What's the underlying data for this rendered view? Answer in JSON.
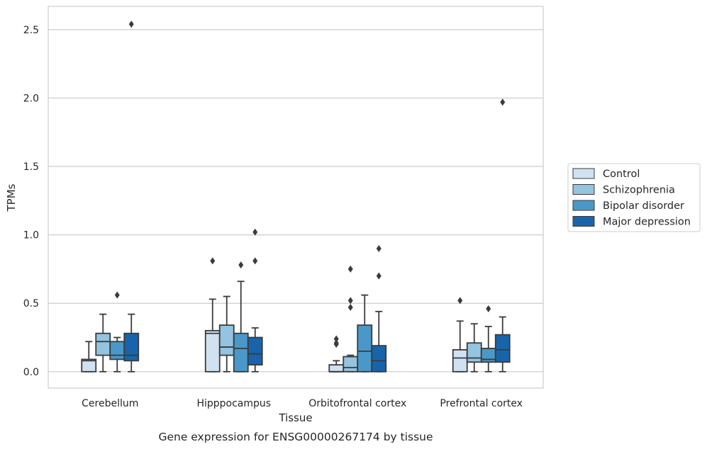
{
  "chart_data": {
    "type": "box",
    "xlabel": "Tissue",
    "ylabel": "TPMs",
    "caption": "Gene expression for ENSG00000267174 by tissue",
    "ylim": [
      -0.12,
      2.67
    ],
    "yticks": [
      "0.0",
      "0.5",
      "1.0",
      "1.5",
      "2.0",
      "2.5"
    ],
    "grid": "horizontal",
    "legend_position": "right",
    "categories": [
      "Cerebellum",
      "Hipppocampus",
      "Orbitofrontal cortex",
      "Prefrontal cortex"
    ],
    "series": [
      {
        "name": "Control",
        "color": "#d0e1f2",
        "boxes": [
          {
            "whisker_low": 0.0,
            "q1": 0.0,
            "median": 0.08,
            "q3": 0.09,
            "whisker_high": 0.22,
            "outliers": []
          },
          {
            "whisker_low": 0.0,
            "q1": 0.0,
            "median": 0.28,
            "q3": 0.3,
            "whisker_high": 0.53,
            "outliers": [
              0.81
            ]
          },
          {
            "whisker_low": 0.0,
            "q1": 0.0,
            "median": 0.0,
            "q3": 0.05,
            "whisker_high": 0.08,
            "outliers": [
              0.2,
              0.21,
              0.24
            ]
          },
          {
            "whisker_low": 0.0,
            "q1": 0.0,
            "median": 0.1,
            "q3": 0.16,
            "whisker_high": 0.37,
            "outliers": [
              0.52
            ]
          }
        ]
      },
      {
        "name": "Schizophrenia",
        "color": "#94c4df",
        "boxes": [
          {
            "whisker_low": 0.0,
            "q1": 0.12,
            "median": 0.22,
            "q3": 0.28,
            "whisker_high": 0.42,
            "outliers": []
          },
          {
            "whisker_low": 0.0,
            "q1": 0.12,
            "median": 0.18,
            "q3": 0.34,
            "whisker_high": 0.55,
            "outliers": []
          },
          {
            "whisker_low": 0.0,
            "q1": 0.0,
            "median": 0.03,
            "q3": 0.11,
            "whisker_high": 0.12,
            "outliers": [
              0.47,
              0.52,
              0.75
            ]
          },
          {
            "whisker_low": 0.0,
            "q1": 0.07,
            "median": 0.1,
            "q3": 0.21,
            "whisker_high": 0.35,
            "outliers": []
          }
        ]
      },
      {
        "name": "Bipolar disorder",
        "color": "#4a98c9",
        "boxes": [
          {
            "whisker_low": 0.0,
            "q1": 0.09,
            "median": 0.12,
            "q3": 0.22,
            "whisker_high": 0.25,
            "outliers": [
              0.56
            ]
          },
          {
            "whisker_low": 0.0,
            "q1": 0.0,
            "median": 0.17,
            "q3": 0.28,
            "whisker_high": 0.66,
            "outliers": [
              0.78
            ]
          },
          {
            "whisker_low": 0.0,
            "q1": 0.0,
            "median": 0.15,
            "q3": 0.34,
            "whisker_high": 0.56,
            "outliers": []
          },
          {
            "whisker_low": 0.0,
            "q1": 0.07,
            "median": 0.09,
            "q3": 0.17,
            "whisker_high": 0.33,
            "outliers": [
              0.46
            ]
          }
        ]
      },
      {
        "name": "Major depression",
        "color": "#1764ab",
        "boxes": [
          {
            "whisker_low": 0.0,
            "q1": 0.08,
            "median": 0.12,
            "q3": 0.28,
            "whisker_high": 0.42,
            "outliers": [
              2.54
            ]
          },
          {
            "whisker_low": 0.0,
            "q1": 0.05,
            "median": 0.13,
            "q3": 0.25,
            "whisker_high": 0.32,
            "outliers": [
              0.81,
              1.02
            ]
          },
          {
            "whisker_low": 0.0,
            "q1": 0.0,
            "median": 0.08,
            "q3": 0.19,
            "whisker_high": 0.44,
            "outliers": [
              0.7,
              0.9
            ]
          },
          {
            "whisker_low": 0.0,
            "q1": 0.07,
            "median": 0.16,
            "q3": 0.27,
            "whisker_high": 0.4,
            "outliers": [
              1.97
            ]
          }
        ]
      }
    ]
  }
}
